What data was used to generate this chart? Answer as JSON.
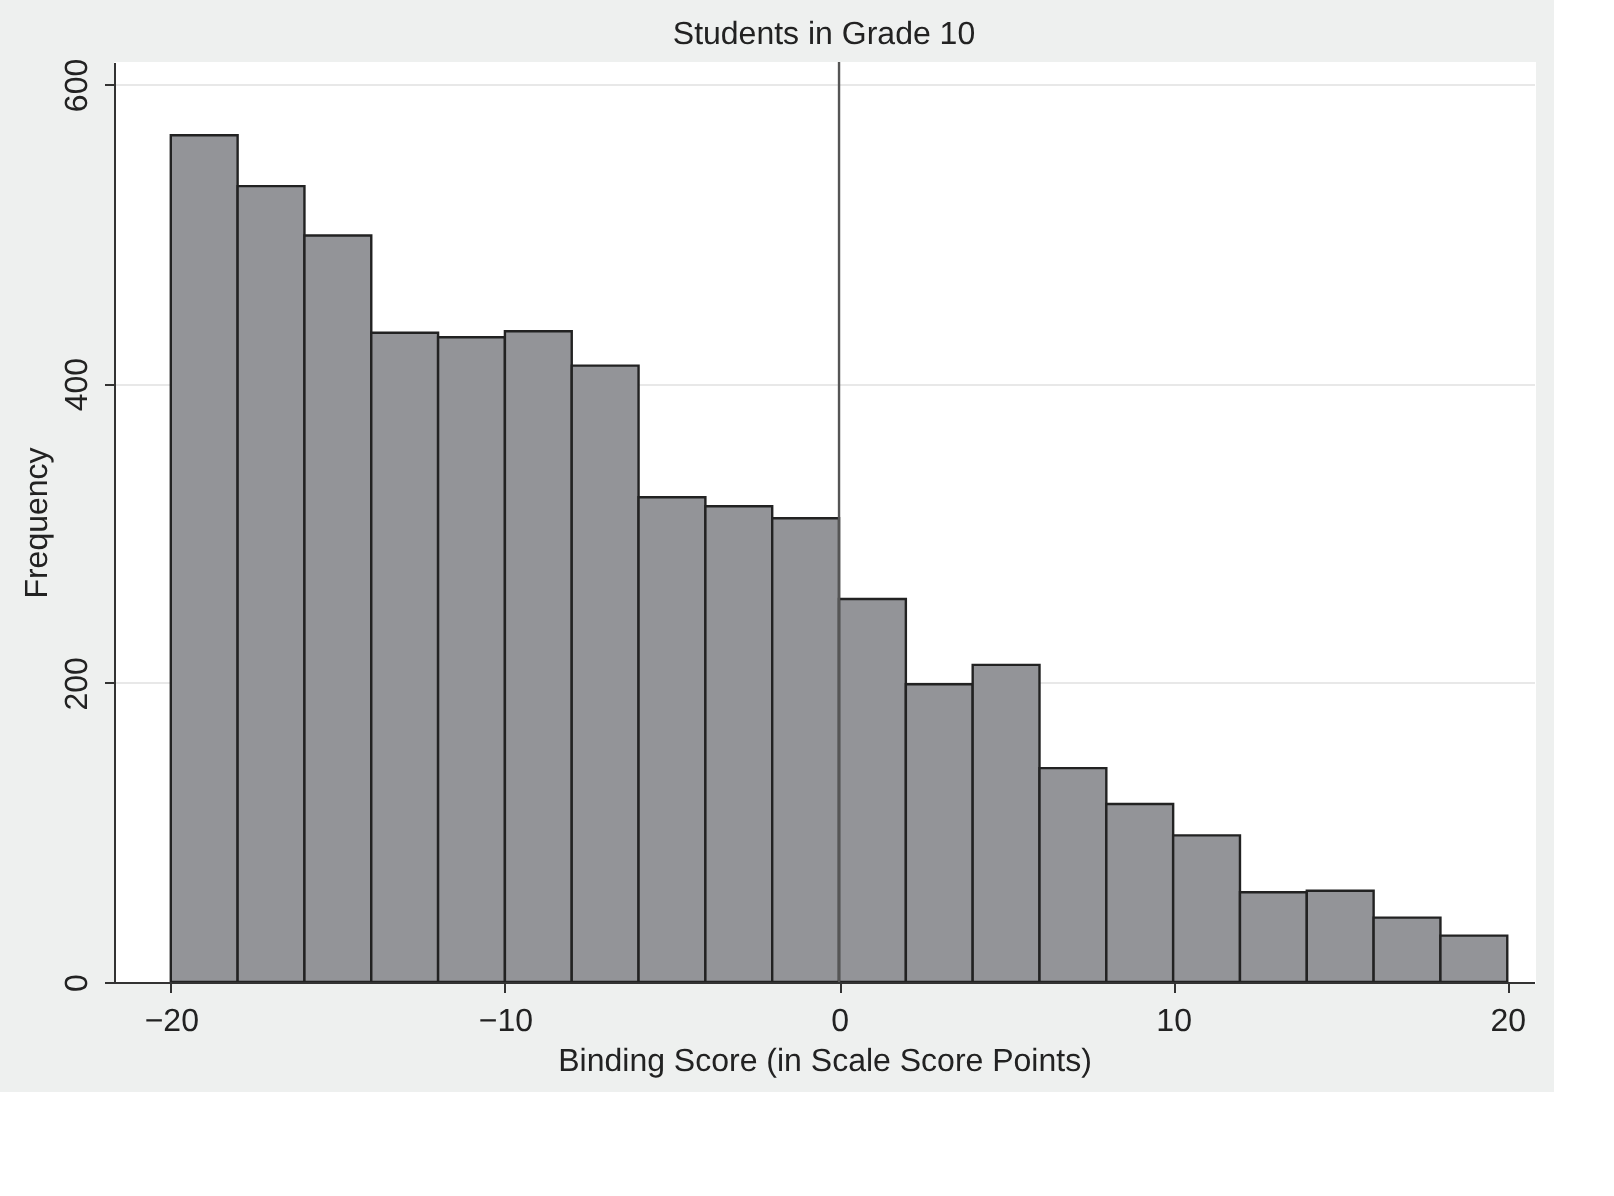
{
  "chart_data": {
    "type": "histogram",
    "title": "Students in Grade 10",
    "xlabel": "Binding Score (in Scale Score Points)",
    "ylabel": "Frequency",
    "bins": [
      -20,
      -18,
      -16,
      -14,
      -12,
      -10,
      -8,
      -6,
      -4,
      -2,
      0,
      2,
      4,
      6,
      8,
      10,
      12,
      14,
      16,
      18,
      20
    ],
    "values": [
      566,
      532,
      499,
      434,
      431,
      435,
      412,
      324,
      318,
      310,
      256,
      199,
      212,
      143,
      119,
      98,
      60,
      61,
      43,
      31
    ],
    "color": "#939498",
    "xlim": [
      -21.7,
      20.8
    ],
    "xticks": [
      -20,
      -10,
      0,
      10,
      20
    ],
    "ylim": [
      0,
      615
    ],
    "yticks": [
      0,
      200,
      400,
      600
    ],
    "grid": "y",
    "ref_lines": [
      {
        "axis": "x",
        "value": 0,
        "color": "#555555"
      }
    ]
  }
}
